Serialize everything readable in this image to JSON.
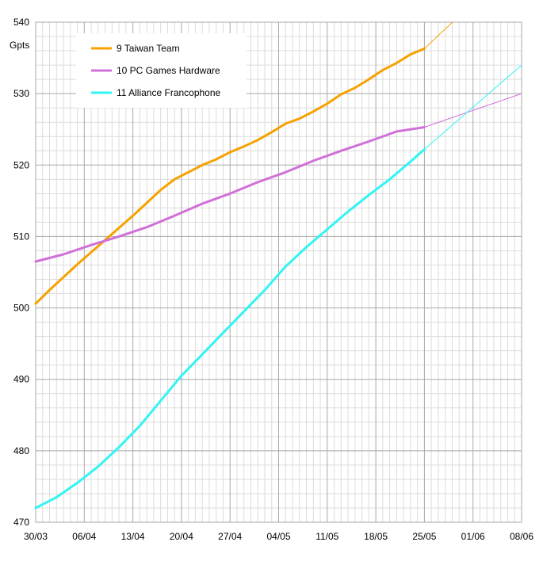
{
  "chart_data": {
    "type": "line",
    "title": "",
    "xlabel": "",
    "ylabel": "Gpts",
    "ylim": [
      470,
      540
    ],
    "xlim_days": [
      0,
      70
    ],
    "y_ticks": [
      470,
      480,
      490,
      500,
      510,
      520,
      530,
      540
    ],
    "x_ticks": [
      {
        "day": 0,
        "label": "30/03"
      },
      {
        "day": 7,
        "label": "06/04"
      },
      {
        "day": 14,
        "label": "13/04"
      },
      {
        "day": 21,
        "label": "20/04"
      },
      {
        "day": 28,
        "label": "27/04"
      },
      {
        "day": 35,
        "label": "04/05"
      },
      {
        "day": 42,
        "label": "11/05"
      },
      {
        "day": 49,
        "label": "18/05"
      },
      {
        "day": 56,
        "label": "25/05"
      },
      {
        "day": 63,
        "label": "01/06"
      },
      {
        "day": 70,
        "label": "08/06"
      }
    ],
    "legend_position": "top-left",
    "series": [
      {
        "name": "9 Taiwan Team",
        "color": "#f5a200",
        "x": [
          0,
          2,
          4,
          6,
          8,
          10,
          12,
          14,
          16,
          18,
          20,
          22,
          24,
          26,
          28,
          30,
          32,
          34,
          36,
          38,
          40,
          42,
          44,
          46,
          48,
          50,
          52,
          54,
          56
        ],
        "values": [
          500.6,
          502.5,
          504.3,
          506.1,
          507.8,
          509.5,
          511.2,
          512.9,
          514.7,
          516.5,
          518.0,
          519.0,
          520.0,
          520.8,
          521.8,
          522.6,
          523.5,
          524.6,
          525.8,
          526.5,
          527.5,
          528.6,
          529.9,
          530.8,
          532.0,
          533.3,
          534.3,
          535.5,
          536.3
        ],
        "trend": {
          "from": [
            56,
            536.3
          ],
          "to": [
            70,
            549.1
          ]
        }
      },
      {
        "name": "10 PC Games Hardware",
        "color": "#d070d8",
        "x": [
          0,
          4,
          8,
          12,
          16,
          20,
          24,
          28,
          32,
          36,
          40,
          44,
          48,
          52,
          56
        ],
        "values": [
          506.5,
          507.5,
          508.8,
          510.0,
          511.3,
          512.9,
          514.6,
          516.0,
          517.6,
          519.0,
          520.6,
          522.0,
          523.3,
          524.7,
          525.3
        ],
        "trend": {
          "from": [
            56,
            525.3
          ],
          "to": [
            70,
            530.0
          ]
        }
      },
      {
        "name": "11 Alliance Francophone",
        "color": "#33f4f4",
        "x": [
          0,
          3,
          6,
          9,
          12,
          15,
          18,
          21,
          24,
          27,
          30,
          33,
          36,
          39,
          42,
          45,
          48,
          51,
          54,
          56
        ],
        "values": [
          472.0,
          473.5,
          475.5,
          477.8,
          480.5,
          483.5,
          487.0,
          490.5,
          493.5,
          496.5,
          499.5,
          502.5,
          505.8,
          508.5,
          511.0,
          513.5,
          515.8,
          518.0,
          520.5,
          522.2
        ],
        "trend": {
          "from": [
            56,
            522.2
          ],
          "to": [
            70,
            534.0
          ]
        }
      }
    ]
  }
}
